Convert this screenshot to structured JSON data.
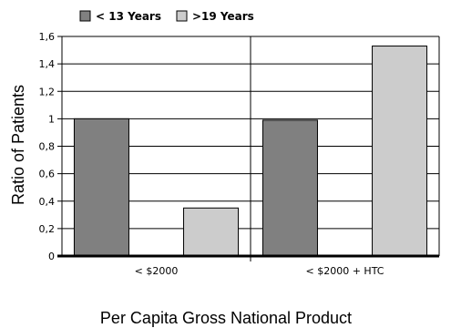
{
  "chart_data": {
    "type": "bar",
    "categories": [
      "< $2000",
      "< $2000 + HTC"
    ],
    "series": [
      {
        "name": "< 13 Years",
        "values": [
          1.0,
          0.99
        ],
        "color": "#808080"
      },
      {
        "name": ">19 Years",
        "values": [
          0.35,
          1.53
        ],
        "color": "#cccccc"
      }
    ],
    "ylabel": "Ratio of Patients",
    "xlabel": "Per Capita Gross National Product",
    "ylim": [
      0,
      1.6
    ],
    "yticks": [
      "0",
      "0,2",
      "0,4",
      "0,6",
      "0,8",
      "1",
      "1,2",
      "1,4",
      "1,6"
    ],
    "grid": true,
    "legend_position": "top-left"
  }
}
